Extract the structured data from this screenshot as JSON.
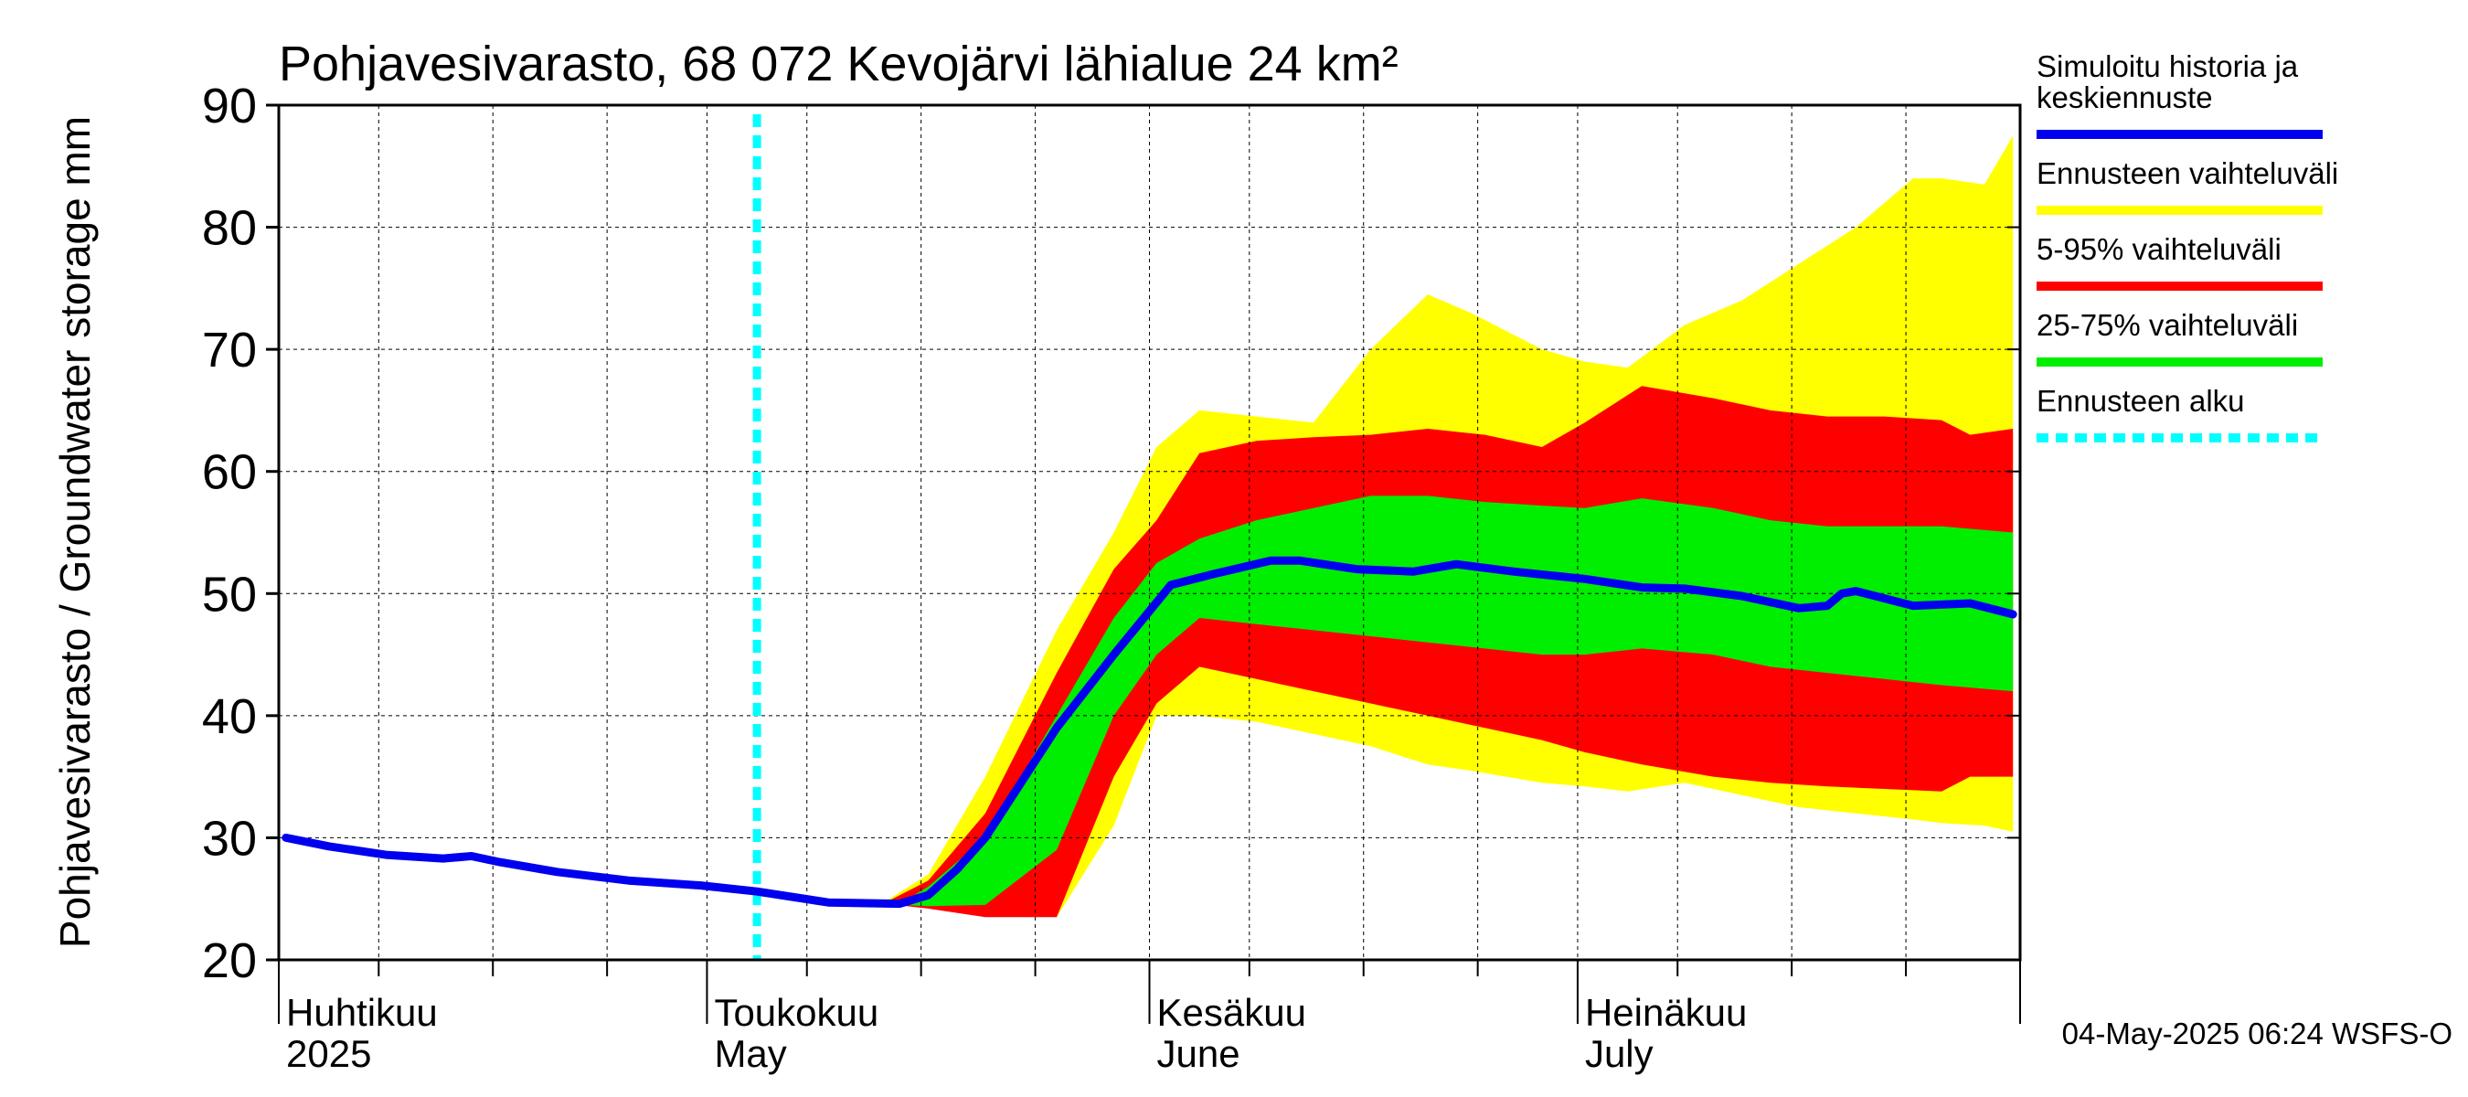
{
  "chart_data": {
    "type": "area",
    "title": "Pohjavesivarasto, 68 072 Kevojärvi lähialue 24 km²",
    "ylabel": "Pohjavesivarasto / Groundwater storage   mm",
    "ylim": [
      20,
      90
    ],
    "yticks": [
      "20",
      "30",
      "40",
      "50",
      "60",
      "70",
      "80",
      "90"
    ],
    "xlim": [
      "2025-04-01",
      "2025-07-31"
    ],
    "grid": true,
    "forecast_start": "2025-05-04",
    "month_labels": [
      {
        "date": "2025-04-01",
        "fi": "Huhtikuu",
        "en": "2025"
      },
      {
        "date": "2025-05-01",
        "fi": "Toukokuu",
        "en": "May"
      },
      {
        "date": "2025-06-01",
        "fi": "Kesäkuu",
        "en": "June"
      },
      {
        "date": "2025-07-01",
        "fi": "Heinäkuu",
        "en": "July"
      }
    ],
    "series": [
      {
        "name": "Simuloitu historia ja keskiennuste",
        "role": "median",
        "color": "#0000ee",
        "x": [
          "2025-04-01",
          "2025-04-04",
          "2025-04-08",
          "2025-04-12",
          "2025-04-14",
          "2025-04-16",
          "2025-04-20",
          "2025-04-25",
          "2025-04-30",
          "2025-05-04",
          "2025-05-09",
          "2025-05-14",
          "2025-05-16",
          "2025-05-18",
          "2025-05-20",
          "2025-05-25",
          "2025-05-29",
          "2025-06-02",
          "2025-06-05",
          "2025-06-09",
          "2025-06-11",
          "2025-06-15",
          "2025-06-19",
          "2025-06-22",
          "2025-06-26",
          "2025-07-01",
          "2025-07-05",
          "2025-07-08",
          "2025-07-12",
          "2025-07-16",
          "2025-07-18",
          "2025-07-19",
          "2025-07-20",
          "2025-07-24",
          "2025-07-28",
          "2025-07-31"
        ],
        "y": [
          30.0,
          29.3,
          28.6,
          28.3,
          28.5,
          28.0,
          27.2,
          26.5,
          26.1,
          25.6,
          24.7,
          24.6,
          25.3,
          27.4,
          30.0,
          39.0,
          45.0,
          50.7,
          51.6,
          52.7,
          52.7,
          52.0,
          51.8,
          52.4,
          51.8,
          51.2,
          50.5,
          50.4,
          49.8,
          48.8,
          49.0,
          50.0,
          50.2,
          49.0,
          49.2,
          48.3
        ]
      },
      {
        "name": "Ennusteen vaihteluväli",
        "role": "band-min-max",
        "color": "#ffff00",
        "x": [
          "2025-05-13",
          "2025-05-16",
          "2025-05-20",
          "2025-05-25",
          "2025-05-29",
          "2025-06-01",
          "2025-06-04",
          "2025-06-08",
          "2025-06-12",
          "2025-06-16",
          "2025-06-20",
          "2025-06-23",
          "2025-06-28",
          "2025-07-01",
          "2025-07-04",
          "2025-07-08",
          "2025-07-12",
          "2025-07-16",
          "2025-07-20",
          "2025-07-24",
          "2025-07-26",
          "2025-07-29",
          "2025-07-31"
        ],
        "upper": [
          24.8,
          27.0,
          35.0,
          47.0,
          55.0,
          62.0,
          65.0,
          64.5,
          64.0,
          70.0,
          74.5,
          73.0,
          70.0,
          69.0,
          68.5,
          72.0,
          74.0,
          77.0,
          80.0,
          84.0,
          84.0,
          83.5,
          87.5
        ],
        "lower": [
          24.6,
          24.6,
          24.0,
          23.5,
          31.0,
          40.0,
          40.0,
          39.5,
          38.5,
          37.5,
          36.0,
          35.5,
          34.5,
          34.2,
          33.8,
          34.5,
          33.5,
          32.5,
          32.0,
          31.5,
          31.2,
          31.0,
          30.5
        ]
      },
      {
        "name": "5-95% vaihteluväli",
        "role": "band-5-95",
        "color": "#ff0000",
        "x": [
          "2025-05-13",
          "2025-05-16",
          "2025-05-20",
          "2025-05-25",
          "2025-05-29",
          "2025-06-01",
          "2025-06-04",
          "2025-06-08",
          "2025-06-12",
          "2025-06-16",
          "2025-06-20",
          "2025-06-24",
          "2025-06-28",
          "2025-07-01",
          "2025-07-05",
          "2025-07-10",
          "2025-07-14",
          "2025-07-18",
          "2025-07-22",
          "2025-07-26",
          "2025-07-28",
          "2025-07-31"
        ],
        "upper": [
          24.7,
          26.5,
          32.0,
          43.5,
          52.0,
          56.0,
          61.5,
          62.5,
          62.8,
          63.0,
          63.5,
          63.0,
          62.0,
          64.0,
          67.0,
          66.0,
          65.0,
          64.5,
          64.5,
          64.2,
          63.0,
          63.5
        ],
        "lower": [
          24.6,
          24.2,
          23.5,
          23.5,
          35.0,
          41.0,
          44.0,
          43.0,
          42.0,
          41.0,
          40.0,
          39.0,
          38.0,
          37.0,
          36.0,
          35.0,
          34.5,
          34.2,
          34.0,
          33.8,
          35.0,
          35.0
        ]
      },
      {
        "name": "25-75% vaihteluväli",
        "role": "band-25-75",
        "color": "#00ee00",
        "x": [
          "2025-05-14",
          "2025-05-16",
          "2025-05-20",
          "2025-05-25",
          "2025-05-29",
          "2025-06-01",
          "2025-06-04",
          "2025-06-08",
          "2025-06-12",
          "2025-06-16",
          "2025-06-20",
          "2025-06-24",
          "2025-06-28",
          "2025-07-01",
          "2025-07-05",
          "2025-07-10",
          "2025-07-14",
          "2025-07-18",
          "2025-07-22",
          "2025-07-26",
          "2025-07-31"
        ],
        "upper": [
          24.6,
          26.0,
          30.0,
          40.0,
          48.0,
          52.5,
          54.5,
          56.0,
          57.0,
          58.0,
          58.0,
          57.5,
          57.2,
          57.0,
          57.8,
          57.0,
          56.0,
          55.5,
          55.5,
          55.5,
          55.0
        ],
        "lower": [
          24.5,
          24.4,
          24.5,
          29.0,
          40.0,
          45.0,
          48.0,
          47.5,
          47.0,
          46.5,
          46.0,
          45.5,
          45.0,
          45.0,
          45.5,
          45.0,
          44.0,
          43.5,
          43.0,
          42.5,
          42.0
        ]
      }
    ],
    "legend": [
      {
        "label": "Simuloitu historia ja keskiennuste",
        "color": "#0000ee",
        "style": "line"
      },
      {
        "label": "Ennusteen vaihteluväli",
        "color": "#ffff00",
        "style": "line"
      },
      {
        "label": "5-95% vaihteluväli",
        "color": "#ff0000",
        "style": "line"
      },
      {
        "label": "25-75% vaihteluväli",
        "color": "#00ee00",
        "style": "line"
      },
      {
        "label": "Ennusteen alku",
        "color": "#00ffff",
        "style": "dashed"
      }
    ],
    "legend_placement": "right",
    "timestamp": "04-May-2025 06:24 WSFS-O"
  }
}
